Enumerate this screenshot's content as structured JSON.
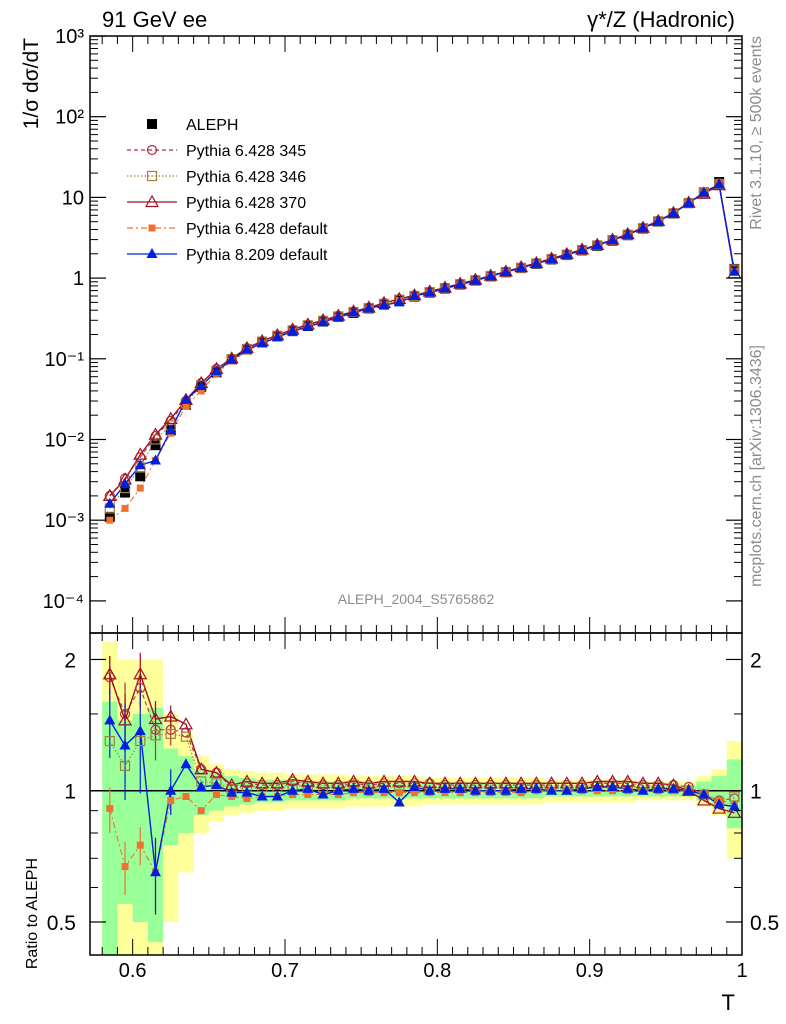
{
  "header": {
    "left": "91 GeV ee",
    "right": "γ*/Z (Hadronic)"
  },
  "side_labels": {
    "rivet": "Rivet 3.1.10, ≥ 500k events",
    "mcplots": "mcplots.cern.ch [arXiv:1306.3436]"
  },
  "analysis_id": "ALEPH_2004_S5765862",
  "colors": {
    "aleph": "#000000",
    "p345": "#b03040",
    "p346": "#a08040",
    "p370": "#a01020",
    "p6def": "#f07030",
    "p8def": "#0020e0",
    "band_inner": "#99ff99",
    "band_outer": "#ffff99"
  },
  "chart_data": [
    {
      "type": "line",
      "yscale": "log",
      "title": "",
      "ylabel": "1/σ  dσ/dT",
      "xlabel": "T",
      "xlim": [
        0.572,
        1.0
      ],
      "ylim": [
        4e-05,
        1000
      ],
      "yticks": [
        {
          "value": 0.0001,
          "label": "10⁻⁴"
        },
        {
          "value": 0.001,
          "label": "10⁻³"
        },
        {
          "value": 0.01,
          "label": "10⁻²"
        },
        {
          "value": 0.1,
          "label": "10⁻¹"
        },
        {
          "value": 1,
          "label": "1"
        },
        {
          "value": 10,
          "label": "10"
        },
        {
          "value": 100,
          "label": "10²"
        },
        {
          "value": 1000,
          "label": "10³"
        }
      ],
      "legend": [
        {
          "name": "ALEPH",
          "key": "aleph"
        },
        {
          "name": "Pythia 6.428 345",
          "key": "p345"
        },
        {
          "name": "Pythia 6.428 346",
          "key": "p346"
        },
        {
          "name": "Pythia 6.428 370",
          "key": "p370"
        },
        {
          "name": "Pythia 6.428 default",
          "key": "p6def"
        },
        {
          "name": "Pythia 8.209 default",
          "key": "p8def"
        }
      ],
      "x": [
        0.585,
        0.595,
        0.605,
        0.615,
        0.625,
        0.635,
        0.645,
        0.655,
        0.665,
        0.675,
        0.685,
        0.695,
        0.705,
        0.715,
        0.725,
        0.735,
        0.745,
        0.755,
        0.765,
        0.775,
        0.785,
        0.795,
        0.805,
        0.815,
        0.825,
        0.835,
        0.845,
        0.855,
        0.865,
        0.875,
        0.885,
        0.895,
        0.905,
        0.915,
        0.925,
        0.935,
        0.945,
        0.955,
        0.965,
        0.975,
        0.985,
        0.995
      ],
      "aleph": [
        0.0011,
        0.0022,
        0.0035,
        0.0085,
        0.013,
        0.027,
        0.045,
        0.068,
        0.098,
        0.13,
        0.16,
        0.19,
        0.22,
        0.255,
        0.29,
        0.33,
        0.37,
        0.42,
        0.47,
        0.53,
        0.59,
        0.66,
        0.74,
        0.83,
        0.93,
        1.05,
        1.18,
        1.33,
        1.5,
        1.7,
        1.93,
        2.2,
        2.5,
        2.9,
        3.4,
        4.1,
        5.0,
        6.3,
        8.5,
        11.5,
        15.5,
        1.3
      ],
      "series": {
        "p345": [
          0.002,
          0.0033,
          0.006,
          0.011,
          0.017,
          0.03,
          0.05,
          0.075,
          0.1,
          0.135,
          0.165,
          0.195,
          0.23,
          0.265,
          0.3,
          0.34,
          0.385,
          0.43,
          0.49,
          0.55,
          0.61,
          0.68,
          0.76,
          0.85,
          0.95,
          1.07,
          1.2,
          1.36,
          1.53,
          1.74,
          1.98,
          2.25,
          2.57,
          2.98,
          3.5,
          4.2,
          5.1,
          6.4,
          8.6,
          11.5,
          15.0,
          1.25
        ],
        "p346": [
          0.0014,
          0.0025,
          0.0045,
          0.01,
          0.015,
          0.028,
          0.047,
          0.071,
          0.099,
          0.132,
          0.163,
          0.193,
          0.225,
          0.26,
          0.295,
          0.335,
          0.38,
          0.425,
          0.48,
          0.54,
          0.6,
          0.67,
          0.75,
          0.84,
          0.94,
          1.06,
          1.19,
          1.34,
          1.52,
          1.72,
          1.95,
          2.22,
          2.54,
          2.95,
          3.45,
          4.15,
          5.05,
          6.35,
          8.5,
          11.3,
          14.6,
          1.28
        ],
        "p370": [
          0.002,
          0.0032,
          0.0065,
          0.0115,
          0.018,
          0.031,
          0.05,
          0.075,
          0.101,
          0.136,
          0.166,
          0.196,
          0.231,
          0.266,
          0.301,
          0.342,
          0.386,
          0.432,
          0.492,
          0.552,
          0.612,
          0.682,
          0.762,
          0.852,
          0.952,
          1.072,
          1.205,
          1.365,
          1.535,
          1.745,
          1.985,
          2.26,
          2.58,
          2.99,
          3.51,
          4.21,
          5.11,
          6.41,
          8.6,
          11.1,
          14.2,
          1.15
        ],
        "p6def": [
          0.001,
          0.0014,
          0.0025,
          0.0055,
          0.012,
          0.026,
          0.04,
          0.066,
          0.094,
          0.125,
          0.156,
          0.185,
          0.216,
          0.25,
          0.285,
          0.325,
          0.365,
          0.415,
          0.465,
          0.525,
          0.585,
          0.655,
          0.735,
          0.825,
          0.925,
          1.045,
          1.175,
          1.325,
          1.495,
          1.695,
          1.925,
          2.195,
          2.495,
          2.895,
          3.395,
          4.095,
          4.995,
          6.295,
          8.5,
          11.3,
          14.7,
          1.2
        ],
        "p8def": [
          0.0016,
          0.0028,
          0.0048,
          0.0055,
          0.013,
          0.031,
          0.046,
          0.07,
          0.097,
          0.13,
          0.155,
          0.185,
          0.22,
          0.25,
          0.285,
          0.33,
          0.375,
          0.42,
          0.465,
          0.5,
          0.6,
          0.66,
          0.745,
          0.835,
          0.93,
          1.055,
          1.185,
          1.34,
          1.51,
          1.71,
          1.94,
          2.22,
          2.55,
          2.95,
          3.45,
          4.15,
          5.05,
          6.35,
          8.5,
          11.5,
          14.5,
          1.2
        ]
      }
    },
    {
      "type": "line",
      "title": "",
      "ylabel": "Ratio to ALEPH",
      "xlabel": "T",
      "xlim": [
        0.572,
        1.0
      ],
      "ylim": [
        0.42,
        2.3
      ],
      "yticks": [
        {
          "value": 0.5,
          "label": "0.5"
        },
        {
          "value": 1,
          "label": "1"
        },
        {
          "value": 2,
          "label": "2"
        }
      ],
      "xticks": [
        {
          "value": 0.6,
          "label": "0.6"
        },
        {
          "value": 0.7,
          "label": "0.7"
        },
        {
          "value": 0.8,
          "label": "0.8"
        },
        {
          "value": 0.9,
          "label": "0.9"
        },
        {
          "value": 1.0,
          "label": "1"
        }
      ],
      "x": [
        0.585,
        0.595,
        0.605,
        0.615,
        0.625,
        0.635,
        0.645,
        0.655,
        0.665,
        0.675,
        0.685,
        0.695,
        0.705,
        0.715,
        0.725,
        0.735,
        0.745,
        0.755,
        0.765,
        0.775,
        0.785,
        0.795,
        0.805,
        0.815,
        0.825,
        0.835,
        0.845,
        0.855,
        0.865,
        0.875,
        0.885,
        0.895,
        0.905,
        0.915,
        0.925,
        0.935,
        0.945,
        0.955,
        0.965,
        0.975,
        0.985,
        0.995
      ],
      "band_inner": [
        0.6,
        0.45,
        0.5,
        0.55,
        0.25,
        0.2,
        0.12,
        0.1,
        0.08,
        0.07,
        0.06,
        0.06,
        0.05,
        0.05,
        0.05,
        0.05,
        0.04,
        0.04,
        0.04,
        0.04,
        0.04,
        0.04,
        0.04,
        0.04,
        0.04,
        0.04,
        0.04,
        0.04,
        0.04,
        0.03,
        0.03,
        0.03,
        0.03,
        0.03,
        0.03,
        0.03,
        0.03,
        0.03,
        0.03,
        0.05,
        0.08,
        0.18
      ],
      "band_outer": [
        1.2,
        1.0,
        1.0,
        1.0,
        0.5,
        0.35,
        0.2,
        0.15,
        0.12,
        0.11,
        0.1,
        0.1,
        0.09,
        0.09,
        0.09,
        0.09,
        0.08,
        0.08,
        0.08,
        0.08,
        0.08,
        0.07,
        0.07,
        0.07,
        0.07,
        0.07,
        0.07,
        0.07,
        0.07,
        0.06,
        0.06,
        0.06,
        0.06,
        0.06,
        0.06,
        0.05,
        0.05,
        0.05,
        0.05,
        0.08,
        0.12,
        0.3
      ],
      "series": {
        "p345": [
          1.82,
          1.5,
          1.72,
          1.38,
          1.38,
          1.36,
          1.12,
          1.1,
          1.02,
          1.04,
          1.03,
          1.03,
          1.05,
          1.04,
          1.03,
          1.03,
          1.04,
          1.03,
          1.04,
          1.04,
          1.04,
          1.04,
          1.03,
          1.03,
          1.03,
          1.03,
          1.03,
          1.03,
          1.03,
          1.03,
          1.03,
          1.03,
          1.04,
          1.04,
          1.04,
          1.03,
          1.03,
          1.03,
          1.02,
          0.98,
          0.95,
          0.96
        ],
        "p346": [
          1.3,
          1.14,
          1.3,
          1.34,
          1.35,
          1.33,
          1.05,
          1.04,
          1.01,
          1.02,
          1.02,
          1.02,
          1.03,
          1.02,
          1.02,
          1.02,
          1.03,
          1.02,
          1.02,
          1.02,
          1.02,
          1.02,
          1.02,
          1.02,
          1.02,
          1.02,
          1.02,
          1.01,
          1.02,
          1.02,
          1.02,
          1.02,
          1.02,
          1.02,
          1.02,
          1.02,
          1.02,
          1.01,
          1.0,
          0.98,
          0.94,
          0.97
        ],
        "p370": [
          1.85,
          1.45,
          1.85,
          1.46,
          1.48,
          1.42,
          1.12,
          1.1,
          1.03,
          1.05,
          1.04,
          1.04,
          1.06,
          1.05,
          1.04,
          1.04,
          1.05,
          1.04,
          1.05,
          1.05,
          1.05,
          1.04,
          1.04,
          1.04,
          1.04,
          1.04,
          1.04,
          1.04,
          1.04,
          1.04,
          1.04,
          1.04,
          1.05,
          1.05,
          1.05,
          1.04,
          1.04,
          1.03,
          1.0,
          0.95,
          0.91,
          0.89
        ],
        "p6def": [
          0.91,
          0.67,
          0.75,
          0.65,
          0.95,
          0.97,
          0.9,
          0.98,
          0.97,
          0.96,
          0.97,
          0.97,
          0.98,
          0.98,
          0.98,
          0.98,
          0.99,
          0.99,
          0.99,
          0.99,
          0.99,
          0.99,
          0.99,
          0.99,
          0.99,
          0.99,
          0.99,
          0.99,
          1.0,
          1.0,
          1.0,
          1.0,
          1.0,
          1.0,
          1.0,
          1.0,
          1.0,
          1.0,
          1.0,
          0.98,
          0.95,
          0.93
        ],
        "p8def": [
          1.45,
          1.27,
          1.37,
          0.65,
          1.0,
          1.15,
          1.02,
          1.03,
          0.99,
          0.99,
          0.97,
          0.97,
          1.0,
          1.01,
          0.98,
          1.0,
          1.01,
          1.0,
          1.01,
          0.94,
          1.02,
          1.0,
          1.01,
          1.01,
          1.0,
          1.0,
          1.0,
          1.01,
          1.01,
          1.0,
          1.0,
          1.01,
          1.02,
          1.02,
          1.01,
          1.0,
          1.01,
          1.01,
          1.0,
          0.98,
          0.93,
          0.92
        ]
      }
    }
  ]
}
